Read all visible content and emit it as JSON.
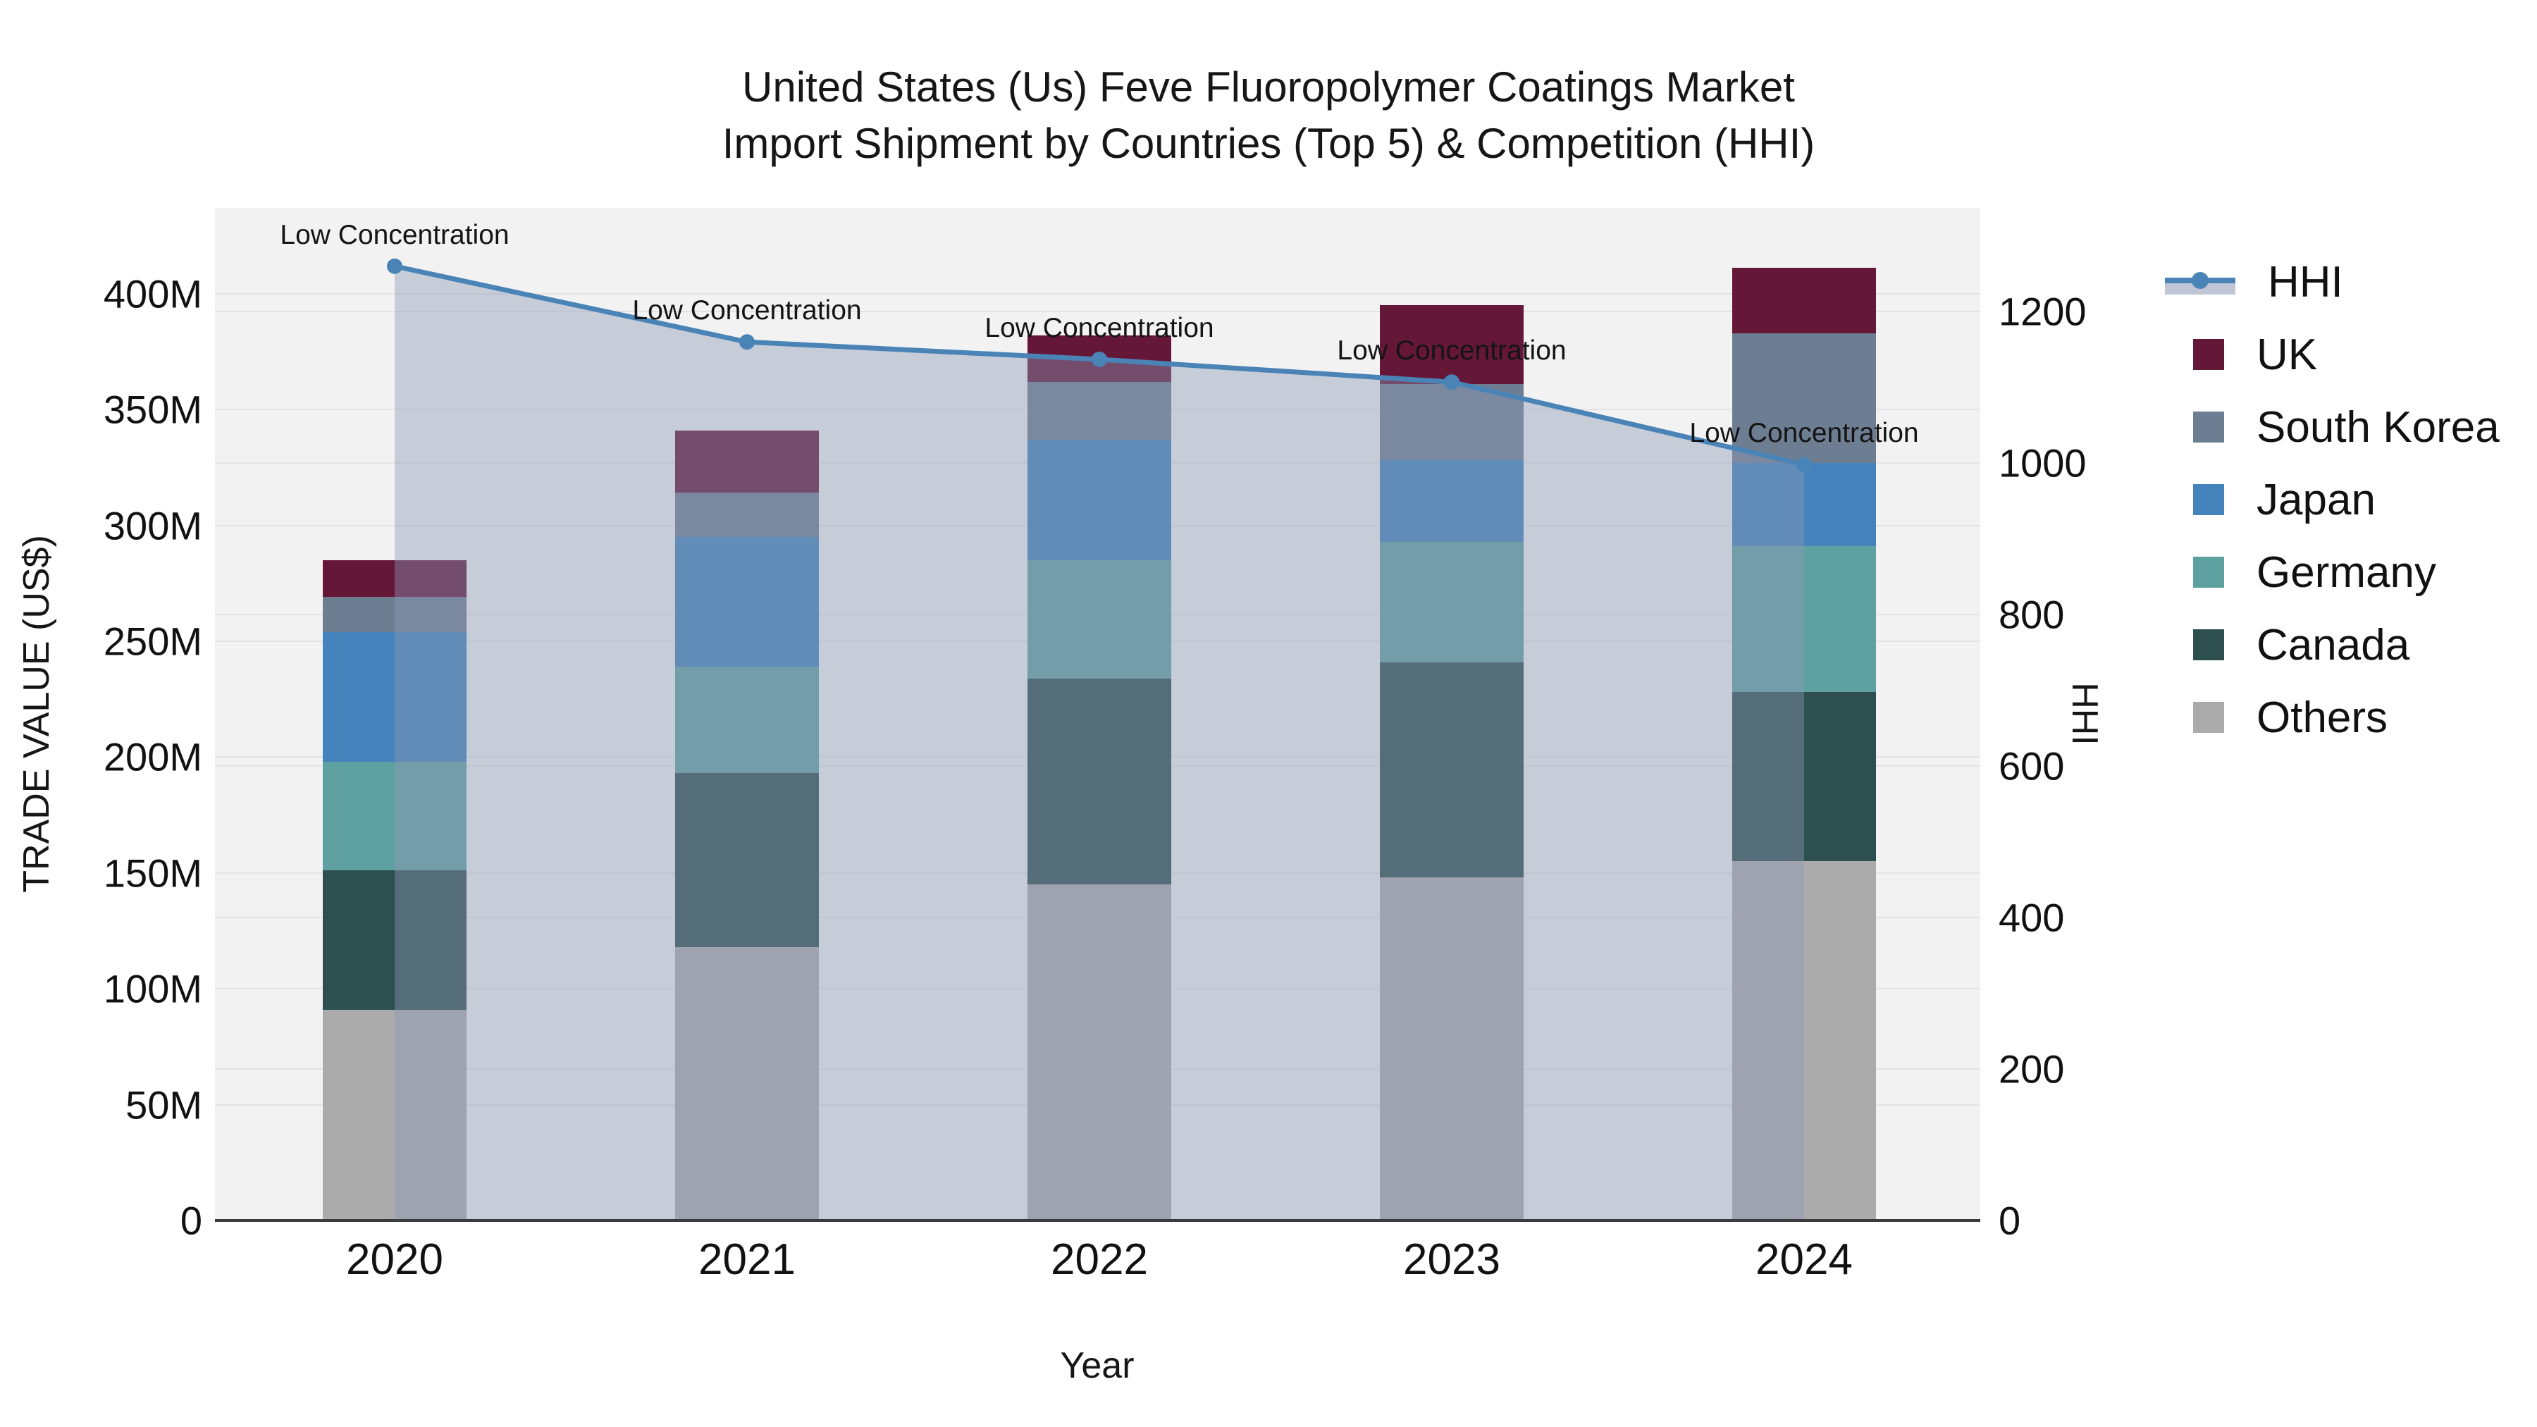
{
  "title": {
    "line1": "United States (Us) Feve Fluoropolymer Coatings Market",
    "line2": "Import Shipment by Countries (Top 5) & Competition (HHI)"
  },
  "axes": {
    "x": {
      "title": "Year",
      "ticks": [
        "2020",
        "2021",
        "2022",
        "2023",
        "2024"
      ]
    },
    "y_left": {
      "title": "TRADE VALUE (US$)",
      "ticks": [
        "0",
        "50M",
        "100M",
        "150M",
        "200M",
        "250M",
        "300M",
        "350M",
        "400M"
      ],
      "tick_values_millions": [
        0,
        50,
        100,
        150,
        200,
        250,
        300,
        350,
        400
      ]
    },
    "y_right": {
      "title": "HHI",
      "ticks": [
        "0",
        "200",
        "400",
        "600",
        "800",
        "1000",
        "1200"
      ],
      "tick_values": [
        0,
        200,
        400,
        600,
        800,
        1000,
        1200
      ]
    }
  },
  "legend": {
    "items": [
      {
        "label": "HHI",
        "type": "line",
        "color": "#4a84b6",
        "band": "rgba(140,152,180,0.55)"
      },
      {
        "label": "UK",
        "type": "square",
        "color": "#651738"
      },
      {
        "label": "South Korea",
        "type": "square",
        "color": "#6e7e92"
      },
      {
        "label": "Japan",
        "type": "square",
        "color": "#4483bb"
      },
      {
        "label": "Germany",
        "type": "square",
        "color": "#5fa0a0"
      },
      {
        "label": "Canada",
        "type": "square",
        "color": "#2d4f4f"
      },
      {
        "label": "Others",
        "type": "square",
        "color": "#ababab"
      }
    ]
  },
  "chart_data": {
    "type": "bar",
    "subtype": "stacked-bars-with-line",
    "title": "United States (Us) Feve Fluoropolymer Coatings Market Import Shipment by Countries (Top 5) & Competition (HHI)",
    "xlabel": "Year",
    "ylabel_left": "TRADE VALUE (US$)",
    "ylabel_right": "HHI",
    "categories": [
      "2020",
      "2021",
      "2022",
      "2023",
      "2024"
    ],
    "bar_unit": "millions USD",
    "series": [
      {
        "name": "Others",
        "color": "#ababab",
        "values": [
          91,
          118,
          145,
          148,
          155
        ]
      },
      {
        "name": "Canada",
        "color": "#2d4f4f",
        "values": [
          60,
          75,
          89,
          93,
          73
        ]
      },
      {
        "name": "Germany",
        "color": "#5fa0a0",
        "values": [
          47,
          46,
          51,
          52,
          63
        ]
      },
      {
        "name": "Japan",
        "color": "#4483bb",
        "values": [
          56,
          56,
          52,
          35,
          36
        ]
      },
      {
        "name": "South Korea",
        "color": "#6e7e92",
        "values": [
          15,
          19,
          25,
          33,
          56
        ]
      },
      {
        "name": "UK",
        "color": "#651738",
        "values": [
          16,
          27,
          20,
          34,
          28
        ]
      }
    ],
    "bar_totals_millions": [
      285,
      341,
      382,
      395,
      411
    ],
    "line_series": {
      "name": "HHI",
      "axis": "right",
      "color": "#4a84b6",
      "fill_color": "rgba(140,152,180,0.42)",
      "values": [
        1260,
        1160,
        1137,
        1107,
        998
      ]
    },
    "annotations": [
      {
        "x": "2020",
        "text": "Low Concentration"
      },
      {
        "x": "2021",
        "text": "Low Concentration"
      },
      {
        "x": "2022",
        "text": "Low Concentration"
      },
      {
        "x": "2023",
        "text": "Low Concentration"
      },
      {
        "x": "2024",
        "text": "Low Concentration"
      }
    ],
    "ylim_left_millions": [
      0,
      437
    ],
    "ylim_right": [
      0,
      1337
    ],
    "grid": true,
    "legend_position": "right",
    "plot_background": "#f2f2f3",
    "gridline_color": "#e3e3e6",
    "axis_line_color": "#3b3b3b"
  }
}
